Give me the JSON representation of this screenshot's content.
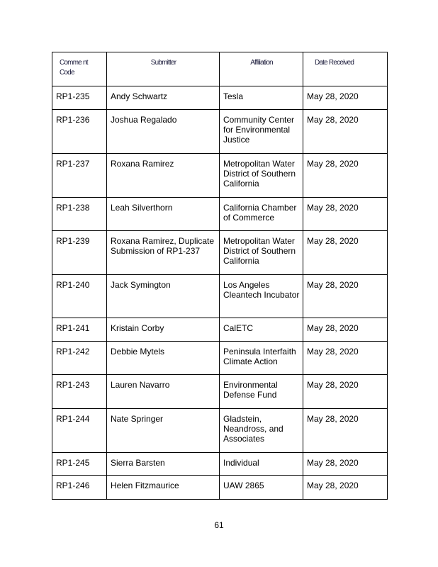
{
  "headers": [
    "Comme nt Code",
    "Submitter",
    "Affiliation",
    "Date Received"
  ],
  "rows": [
    [
      "RP1-235",
      "Andy Schwartz",
      "Tesla",
      "May 28, 2020"
    ],
    [
      "RP1-236",
      "Joshua Regalado",
      "Community Center for Environmental Justice",
      "May 28, 2020"
    ],
    [
      "RP1-237",
      "Roxana Ramirez",
      "Metropolitan Water District of Southern California",
      "May 28, 2020"
    ],
    [
      "RP1-238",
      "Leah Silverthorn",
      "California Chamber of Commerce",
      "May 28, 2020"
    ],
    [
      "RP1-239",
      "Roxana Ramirez, Duplicate Submission of RP1-237",
      "Metropolitan Water District of Southern California",
      "May 28, 2020"
    ],
    [
      "RP1-240",
      "Jack Symington",
      "Los Angeles Cleantech Incubator",
      "May 28, 2020"
    ],
    [
      "RP1-241",
      "Kristain Corby",
      "CalETC",
      "May 28, 2020"
    ],
    [
      "RP1-242",
      "Debbie Mytels",
      "Peninsula Interfaith Climate Action",
      "May 28, 2020"
    ],
    [
      "RP1-243",
      "Lauren Navarro",
      "Environmental Defense Fund",
      "May 28, 2020"
    ],
    [
      "RP1-244",
      "Nate Springer",
      "Gladstein, Neandross, and Associates",
      "May 28, 2020"
    ],
    [
      "RP1-245",
      "Sierra Barsten",
      "Individual",
      "May 28, 2020"
    ],
    [
      "RP1-246",
      "Helen Fitzmaurice",
      "UAW 2865",
      "May 28, 2020"
    ]
  ],
  "page_number": "61"
}
